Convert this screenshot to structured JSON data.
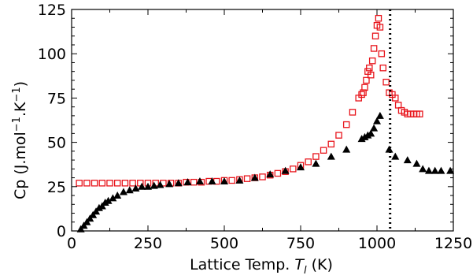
{
  "chart_data": {
    "type": "scatter",
    "xlabel": {
      "pre": "Lattice Temp. ",
      "var": "T",
      "sub": "l",
      "post": " (K)"
    },
    "ylabel": {
      "a": "Cp (J.mol",
      "sup1": "−1",
      "b": ".K",
      "sup2": "−1",
      "c": ")"
    },
    "xlim": [
      0,
      1250
    ],
    "ylim": [
      0,
      125
    ],
    "xticks": [
      0,
      250,
      500,
      750,
      1000,
      1250
    ],
    "yticks": [
      0,
      25,
      50,
      75,
      100,
      125
    ],
    "grid": false,
    "vline": {
      "x": 1043,
      "style": "dotted",
      "color": "#000000"
    },
    "series": [
      {
        "marker": "square-open",
        "color": "#e8141b",
        "x": [
          25,
          50,
          75,
          100,
          125,
          150,
          175,
          200,
          225,
          250,
          275,
          300,
          325,
          350,
          375,
          400,
          425,
          450,
          475,
          500,
          525,
          550,
          575,
          600,
          625,
          650,
          675,
          700,
          725,
          750,
          775,
          800,
          825,
          850,
          875,
          900,
          920,
          940,
          950,
          955,
          960,
          965,
          970,
          975,
          980,
          985,
          990,
          995,
          1000,
          1005,
          1010,
          1015,
          1020,
          1030,
          1040,
          1050,
          1060,
          1070,
          1080,
          1090,
          1100,
          1110,
          1120,
          1130,
          1140
        ],
        "y": [
          27,
          27,
          27,
          27,
          27,
          27,
          27,
          27,
          27,
          27,
          27,
          27,
          27,
          27,
          27.5,
          27.5,
          27.5,
          28,
          28,
          28.5,
          28.5,
          29,
          29.5,
          30,
          30.5,
          31.5,
          32.5,
          33.5,
          35,
          37,
          39,
          42,
          45.5,
          49,
          54,
          60,
          67,
          75,
          77,
          78,
          81,
          85,
          90,
          92,
          88,
          96,
          103,
          110,
          116,
          120,
          115,
          100,
          92,
          84,
          78,
          77,
          75,
          71,
          68,
          67,
          66,
          66,
          66,
          66,
          66
        ]
      },
      {
        "marker": "triangle-filled",
        "color": "#000000",
        "x": [
          30,
          40,
          50,
          60,
          70,
          80,
          90,
          100,
          110,
          120,
          135,
          150,
          170,
          190,
          210,
          230,
          250,
          270,
          290,
          320,
          350,
          380,
          420,
          460,
          500,
          550,
          600,
          650,
          700,
          750,
          800,
          850,
          900,
          950,
          960,
          970,
          980,
          990,
          1000,
          1010,
          1040,
          1060,
          1100,
          1130,
          1150,
          1170,
          1190,
          1210,
          1240
        ],
        "y": [
          1,
          3,
          5,
          7,
          9,
          11,
          13,
          14,
          16,
          17,
          18.5,
          20,
          22,
          23,
          24,
          25,
          25,
          25.5,
          26,
          26.5,
          27,
          27.5,
          28,
          28,
          28,
          28.5,
          30,
          32,
          34,
          36,
          38,
          42,
          46,
          52,
          53,
          54,
          55,
          58,
          62,
          65,
          46,
          42,
          40,
          38,
          35,
          34,
          34,
          34,
          34
        ]
      }
    ]
  }
}
